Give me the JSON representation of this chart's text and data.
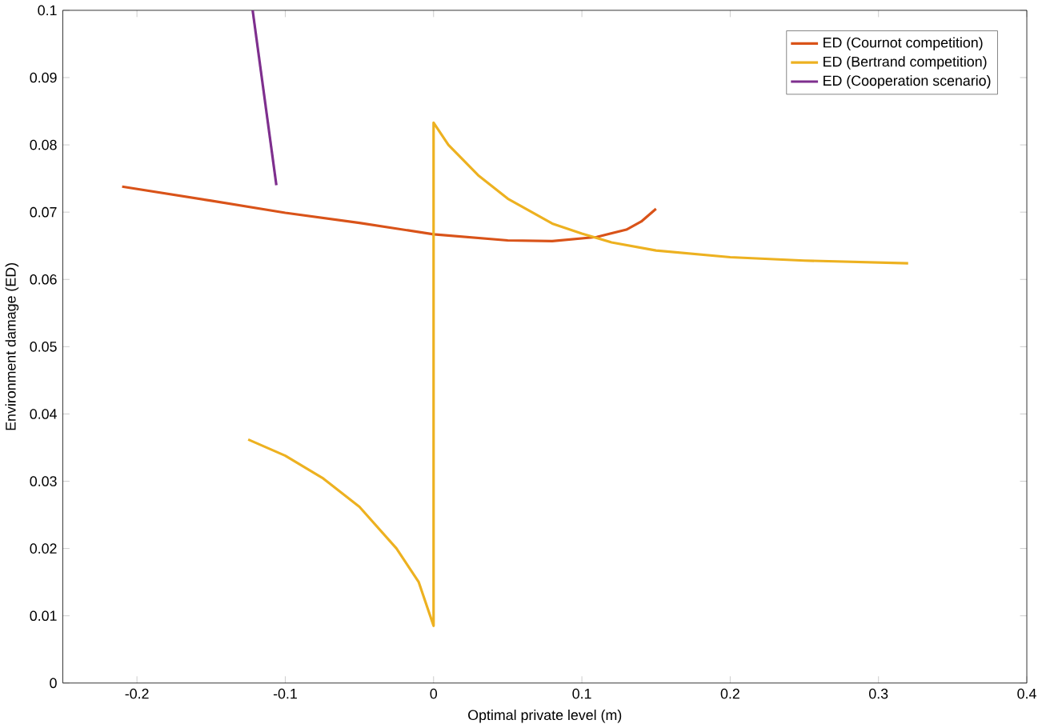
{
  "chart_data": {
    "type": "line",
    "xlabel": "Optimal private level (m)",
    "ylabel": "Environment damage (ED)",
    "xlim": [
      -0.25,
      0.4
    ],
    "ylim": [
      0,
      0.1
    ],
    "xticks": [
      -0.2,
      -0.1,
      0,
      0.1,
      0.2,
      0.3,
      0.4
    ],
    "yticks": [
      0,
      0.01,
      0.02,
      0.03,
      0.04,
      0.05,
      0.06,
      0.07,
      0.08,
      0.09,
      0.1
    ],
    "grid": false,
    "legend": "top right",
    "marker": "none",
    "line_style": "solid",
    "series": [
      {
        "name": "ED (Cournot competition)",
        "color": "#d95319",
        "x": [
          -0.21,
          -0.15,
          -0.1,
          -0.05,
          0,
          0.05,
          0.08,
          0.11,
          0.13,
          0.14,
          0.15
        ],
        "values": [
          0.0738,
          0.0717,
          0.0699,
          0.0684,
          0.0667,
          0.0658,
          0.0657,
          0.0663,
          0.0674,
          0.0686,
          0.0705
        ]
      },
      {
        "name": "ED (Bertrand competition)",
        "color": "#edb120",
        "x": [
          -0.125,
          -0.1,
          -0.075,
          -0.05,
          -0.025,
          -0.01,
          0,
          0,
          0.01,
          0.03,
          0.05,
          0.08,
          0.1,
          0.12,
          0.15,
          0.2,
          0.25,
          0.32
        ],
        "values": [
          0.0362,
          0.0338,
          0.0305,
          0.0262,
          0.02,
          0.015,
          0.0085,
          0.0833,
          0.08,
          0.0755,
          0.072,
          0.0683,
          0.0668,
          0.0655,
          0.0643,
          0.0633,
          0.0628,
          0.0624
        ]
      },
      {
        "name": "ED (Cooperation scenario)",
        "color": "#7e2f8e",
        "x": [
          -0.122,
          -0.106
        ],
        "values": [
          0.1,
          0.074
        ]
      }
    ]
  }
}
